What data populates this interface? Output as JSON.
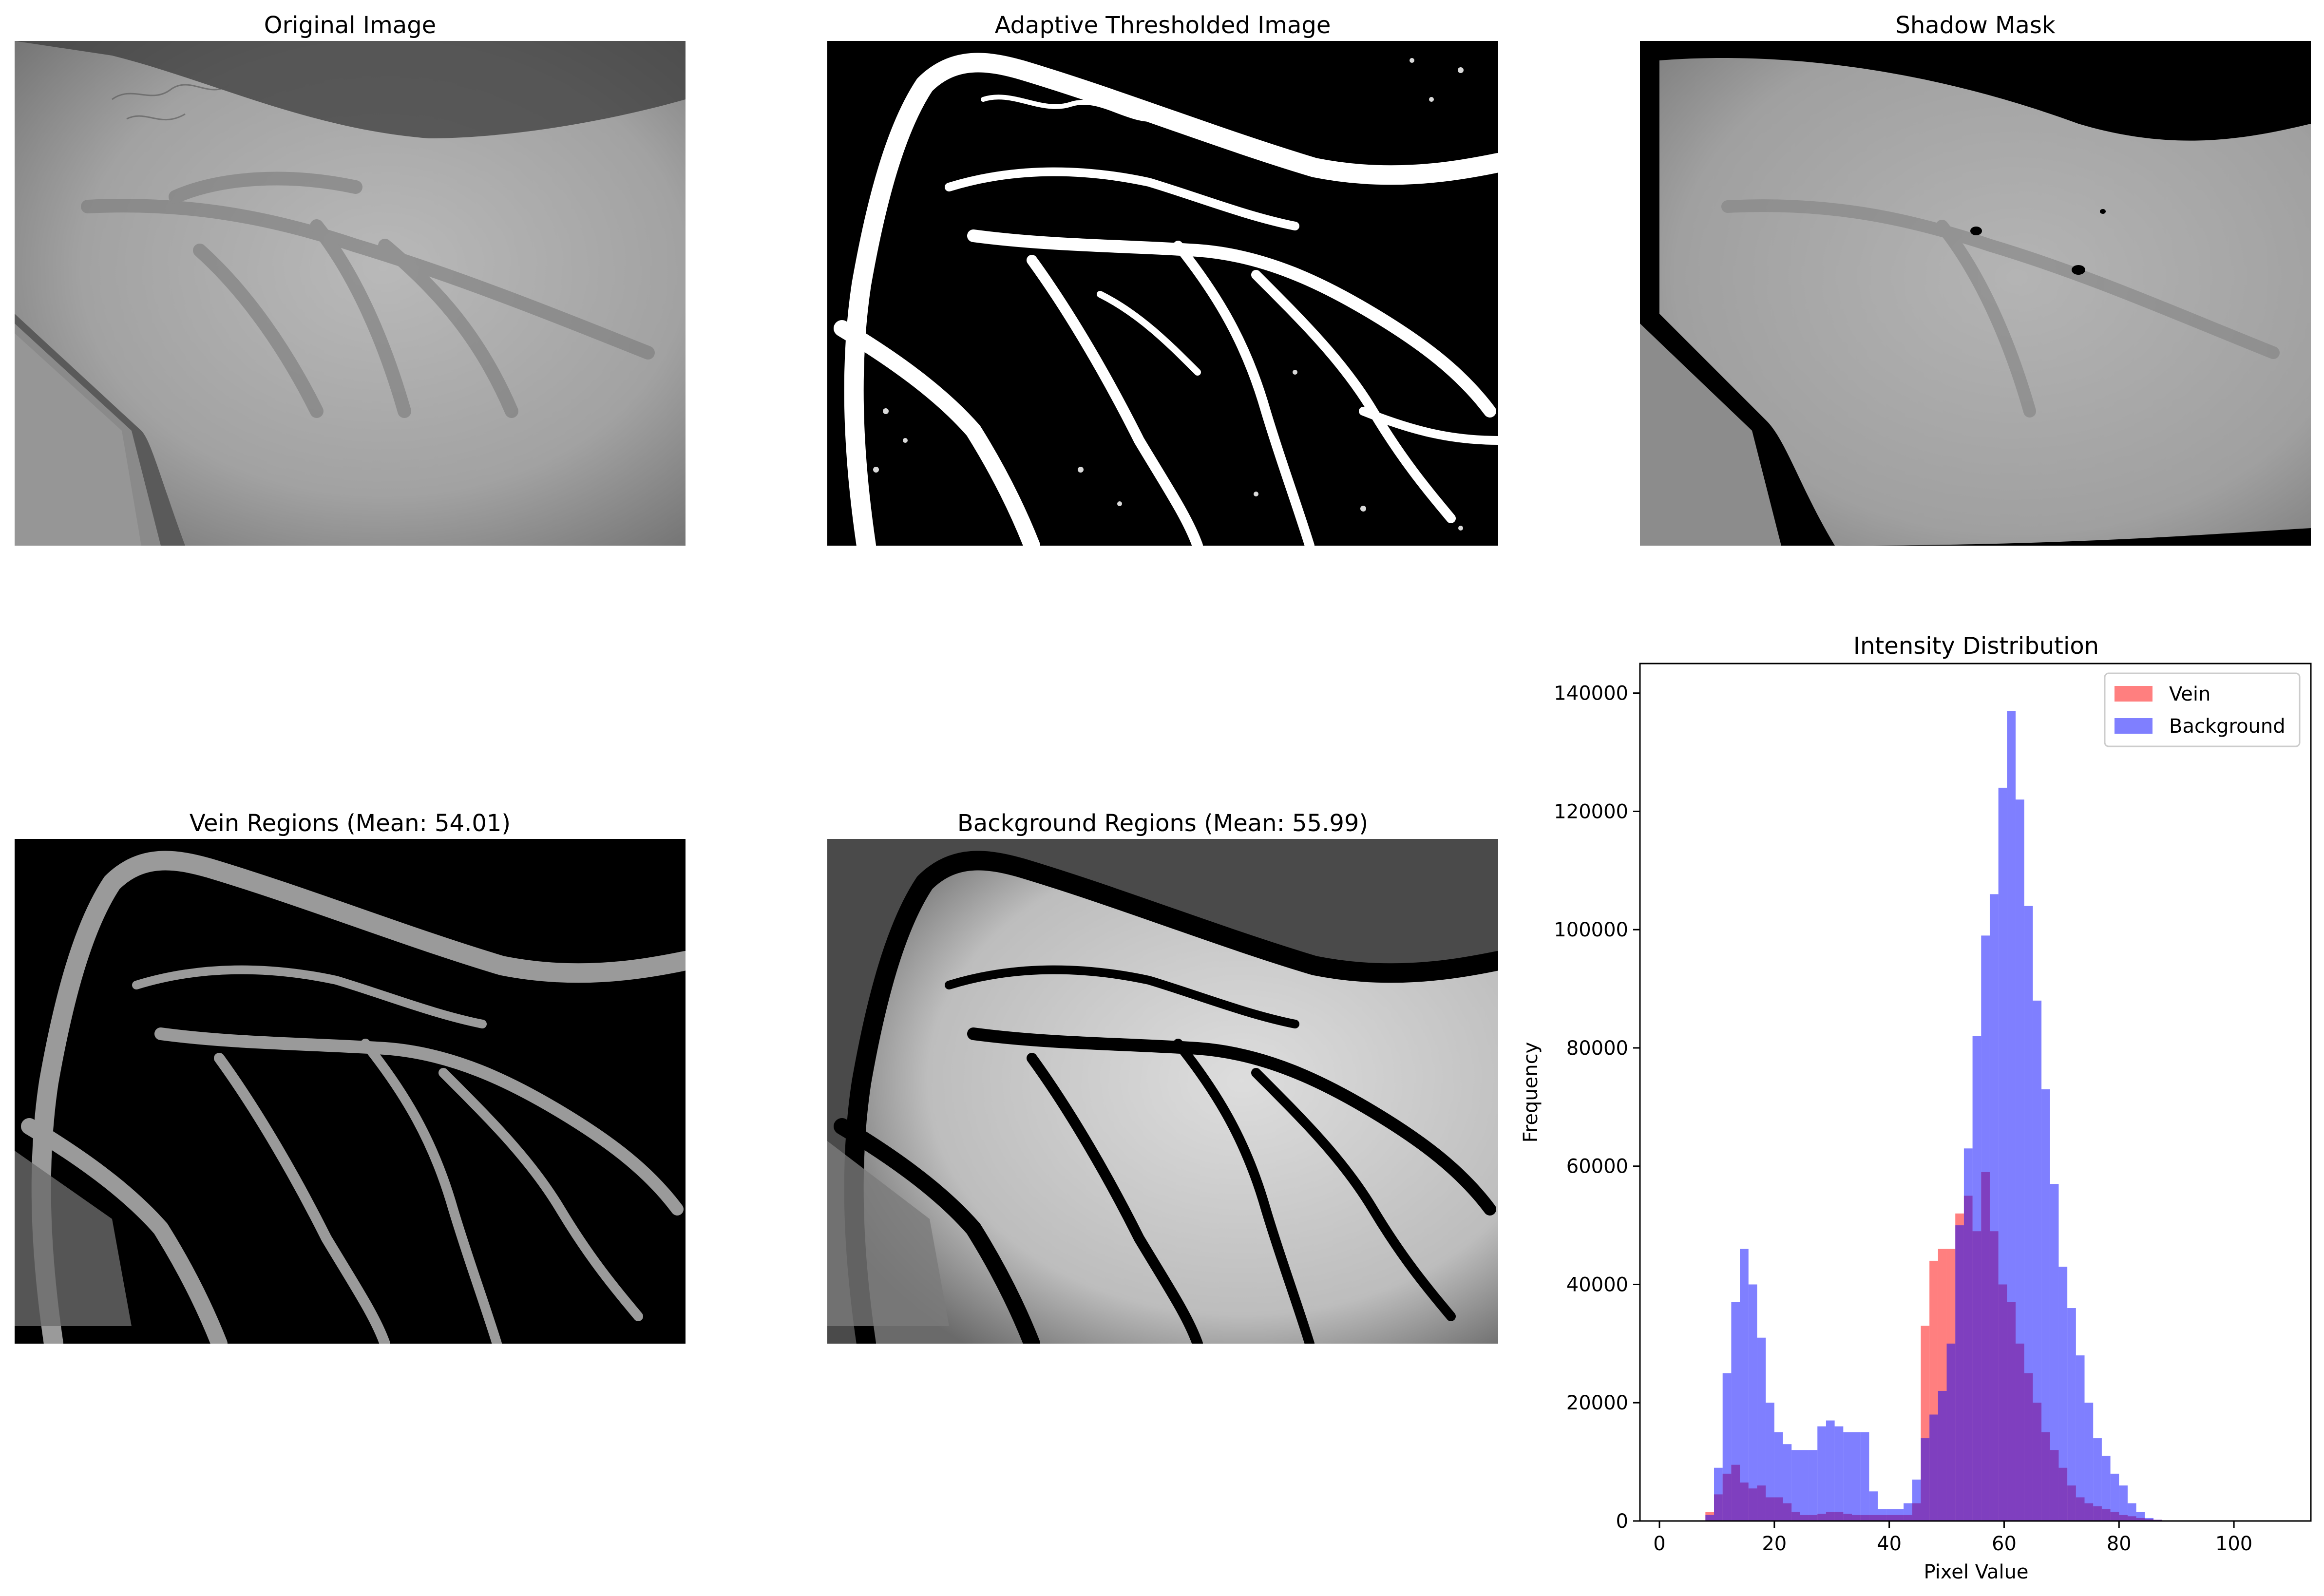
{
  "panels": {
    "original": {
      "title": "Original Image"
    },
    "adaptive": {
      "title": "Adaptive Thresholded Image"
    },
    "shadow": {
      "title": "Shadow Mask"
    },
    "vein": {
      "title": "Vein Regions (Mean: 54.01)"
    },
    "background": {
      "title": "Background Regions (Mean: 55.99)"
    }
  },
  "chart_data": {
    "type": "bar",
    "title": "Intensity Distribution",
    "xlabel": "Pixel Value",
    "ylabel": "Frequency",
    "xlim": [
      0,
      110
    ],
    "ylim": [
      0,
      140000
    ],
    "xticks": [
      0,
      20,
      40,
      60,
      80,
      100
    ],
    "yticks": [
      0,
      20000,
      40000,
      60000,
      80000,
      100000,
      120000,
      140000
    ],
    "xtick_labels": [
      "0",
      "20",
      "40",
      "60",
      "80",
      "100"
    ],
    "ytick_labels": [
      "0",
      "20000",
      "40000",
      "60000",
      "80000",
      "100000",
      "120000",
      "140000"
    ],
    "bin_edges": [
      5,
      6.5,
      8,
      9.5,
      11,
      12.5,
      14,
      15.5,
      17,
      18.5,
      20,
      21.5,
      23,
      24.5,
      26,
      27.5,
      29,
      30.5,
      32,
      33.5,
      35,
      36.5,
      38,
      39.5,
      41,
      42.5,
      44,
      45.5,
      47,
      48.5,
      50,
      51.5,
      53,
      54.5,
      56,
      57.5,
      59,
      60.5,
      62,
      63.5,
      65,
      66.5,
      68,
      69.5,
      71,
      72.5,
      74,
      75.5,
      77,
      78.5,
      80,
      81.5,
      83,
      84.5,
      86,
      87.5,
      89,
      90.5,
      92,
      93.5,
      95
    ],
    "legend_position": "top-right",
    "series": [
      {
        "name": "Vein",
        "color": "#ff0000",
        "values": [
          0,
          0,
          1500,
          4500,
          8000,
          9500,
          6500,
          5500,
          6000,
          4000,
          4000,
          3000,
          1500,
          1000,
          1000,
          1200,
          1500,
          1500,
          1200,
          1000,
          1000,
          1000,
          1000,
          1000,
          1000,
          1000,
          3000,
          33000,
          44000,
          46000,
          46000,
          52000,
          55000,
          49000,
          59000,
          49000,
          40000,
          37000,
          30000,
          25000,
          20000,
          15000,
          12000,
          9000,
          6000,
          4000,
          3000,
          2500,
          2000,
          1500,
          1000,
          800,
          500,
          300,
          200,
          100,
          0,
          0,
          0,
          0
        ]
      },
      {
        "name": "Background",
        "color": "#0000ff",
        "values": [
          0,
          0,
          1000,
          9000,
          25000,
          37000,
          46000,
          40000,
          31000,
          20000,
          15000,
          13000,
          12000,
          12000,
          12000,
          16000,
          17000,
          16000,
          15000,
          15000,
          15000,
          5000,
          2000,
          2000,
          2000,
          3000,
          7000,
          14000,
          18000,
          22000,
          30000,
          50000,
          63000,
          82000,
          99000,
          106000,
          124000,
          137000,
          122000,
          104000,
          88000,
          73000,
          57000,
          43000,
          36000,
          28000,
          20000,
          14000,
          11000,
          8000,
          6000,
          3000,
          1500,
          500,
          200,
          100,
          0,
          0,
          0,
          0
        ]
      }
    ]
  }
}
